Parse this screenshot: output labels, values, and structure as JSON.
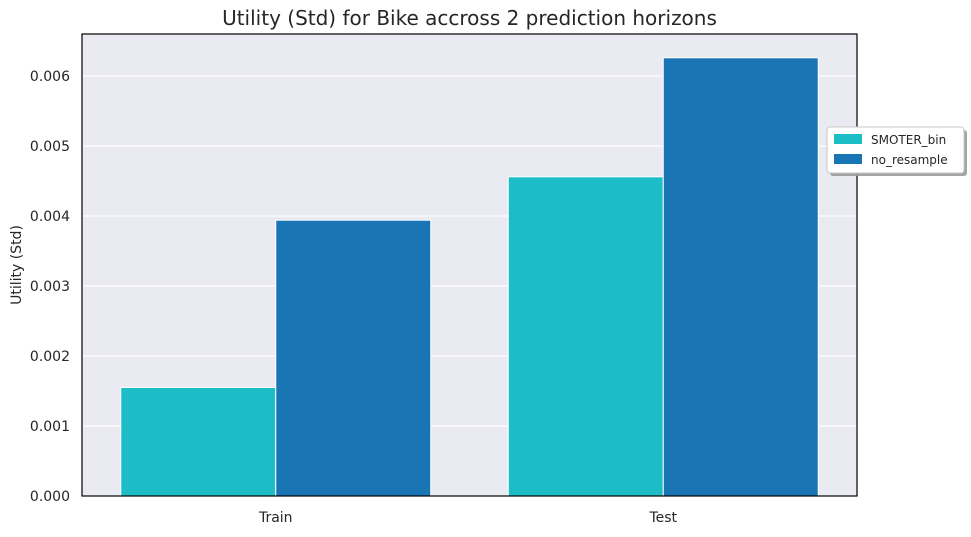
{
  "chart_data": {
    "type": "bar",
    "title": "Utility (Std) for Bike accross 2 prediction horizons",
    "xlabel": "",
    "ylabel": "Utility (Std)",
    "categories": [
      "Train",
      "Test"
    ],
    "series": [
      {
        "name": "SMOTER_bin",
        "color": "#1cbdc6",
        "values": [
          0.00155,
          0.00456
        ]
      },
      {
        "name": "no_resample",
        "color": "#1a75b4",
        "values": [
          0.00394,
          0.00626
        ]
      }
    ],
    "ylim": [
      0,
      0.0066
    ],
    "yticks": [
      0,
      0.001,
      0.002,
      0.003,
      0.004,
      0.005,
      0.006
    ],
    "ytick_labels": [
      "0.000",
      "0.001",
      "0.002",
      "0.003",
      "0.004",
      "0.005",
      "0.006"
    ],
    "grid": true,
    "legend_position": "right, outside plot"
  }
}
